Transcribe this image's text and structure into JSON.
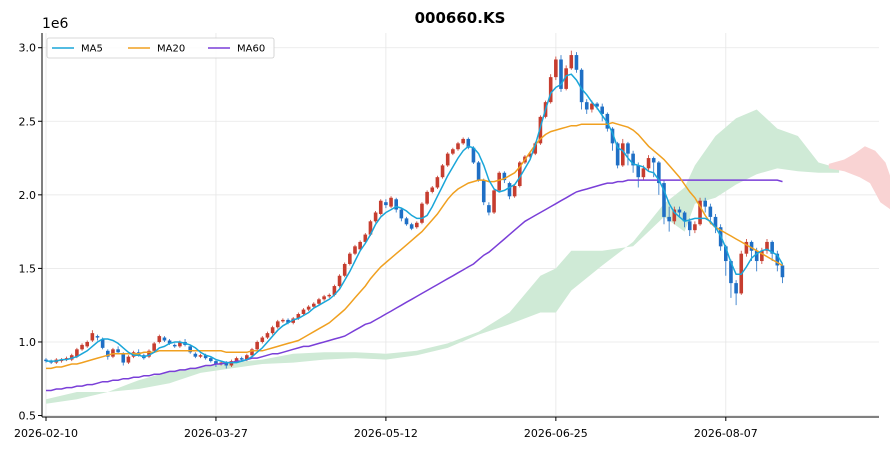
{
  "chart_data": {
    "type": "candlestick",
    "title": "000660.KS",
    "y_scale_label": "1e6",
    "ylim": [
      0.49,
      3.1
    ],
    "y_ticks": [
      0.5,
      1.0,
      1.5,
      2.0,
      2.5,
      3.0
    ],
    "y_tick_labels": [
      "0.5",
      "1.0",
      "1.5",
      "2.0",
      "2.5",
      "3.0"
    ],
    "x_tick_labels": [
      "2026-02-10",
      "2026-03-27",
      "2026-05-12",
      "2026-06-25",
      "2026-08-07"
    ],
    "x_tick_index": [
      0,
      33,
      66,
      99,
      132
    ],
    "total_slots": 162,
    "grid": true,
    "legend_position": "upper-left",
    "colors": {
      "up": "#c63d2f",
      "down": "#1f6fc5",
      "ma5": "#1aa6d9",
      "ma20": "#f0a020",
      "ma60": "#7a3fd8",
      "cloud_bull": "#cfead6",
      "cloud_bear": "#f9d3d3"
    },
    "series": [
      {
        "name": "MA5",
        "color": "#1aa6d9"
      },
      {
        "name": "MA20",
        "color": "#f0a020"
      },
      {
        "name": "MA60",
        "color": "#7a3fd8"
      }
    ],
    "candles": [
      [
        0.88,
        0.87,
        0.89,
        0.86
      ],
      [
        0.87,
        0.86,
        0.88,
        0.85
      ],
      [
        0.86,
        0.88,
        0.89,
        0.85
      ],
      [
        0.87,
        0.88,
        0.89,
        0.86
      ],
      [
        0.88,
        0.89,
        0.9,
        0.87
      ],
      [
        0.88,
        0.91,
        0.92,
        0.87
      ],
      [
        0.9,
        0.95,
        0.96,
        0.89
      ],
      [
        0.95,
        0.98,
        0.99,
        0.94
      ],
      [
        0.97,
        1.0,
        1.01,
        0.96
      ],
      [
        1.01,
        1.06,
        1.08,
        1.0
      ],
      [
        1.04,
        1.03,
        1.05,
        1.01
      ],
      [
        1.02,
        0.96,
        1.03,
        0.95
      ],
      [
        0.94,
        0.9,
        0.95,
        0.88
      ],
      [
        0.9,
        0.95,
        0.96,
        0.89
      ],
      [
        0.95,
        0.93,
        0.97,
        0.92
      ],
      [
        0.92,
        0.86,
        0.93,
        0.84
      ],
      [
        0.86,
        0.9,
        0.91,
        0.85
      ],
      [
        0.9,
        0.93,
        0.94,
        0.89
      ],
      [
        0.93,
        0.91,
        0.95,
        0.9
      ],
      [
        0.91,
        0.89,
        0.92,
        0.88
      ],
      [
        0.9,
        0.94,
        0.95,
        0.89
      ],
      [
        0.94,
        0.99,
        1.0,
        0.93
      ],
      [
        1.0,
        1.04,
        1.05,
        0.99
      ],
      [
        1.03,
        1.01,
        1.04,
        1.0
      ],
      [
        1.01,
        0.99,
        1.02,
        0.98
      ],
      [
        0.98,
        0.97,
        0.99,
        0.96
      ],
      [
        0.97,
        1.0,
        1.01,
        0.96
      ],
      [
        1.0,
        0.98,
        1.02,
        0.97
      ],
      [
        0.97,
        0.93,
        0.98,
        0.92
      ],
      [
        0.92,
        0.9,
        0.93,
        0.89
      ],
      [
        0.9,
        0.91,
        0.92,
        0.89
      ],
      [
        0.91,
        0.89,
        0.92,
        0.88
      ],
      [
        0.89,
        0.87,
        0.9,
        0.86
      ],
      [
        0.87,
        0.85,
        0.88,
        0.83
      ],
      [
        0.85,
        0.86,
        0.87,
        0.84
      ],
      [
        0.86,
        0.84,
        0.87,
        0.82
      ],
      [
        0.84,
        0.87,
        0.88,
        0.83
      ],
      [
        0.87,
        0.89,
        0.9,
        0.86
      ],
      [
        0.89,
        0.88,
        0.9,
        0.87
      ],
      [
        0.88,
        0.91,
        0.92,
        0.87
      ],
      [
        0.91,
        0.95,
        0.96,
        0.9
      ],
      [
        0.95,
        1.0,
        1.01,
        0.94
      ],
      [
        1.0,
        1.03,
        1.04,
        0.99
      ],
      [
        1.03,
        1.06,
        1.07,
        1.02
      ],
      [
        1.06,
        1.1,
        1.11,
        1.05
      ],
      [
        1.1,
        1.14,
        1.15,
        1.09
      ],
      [
        1.14,
        1.15,
        1.16,
        1.13
      ],
      [
        1.15,
        1.13,
        1.16,
        1.12
      ],
      [
        1.13,
        1.16,
        1.17,
        1.12
      ],
      [
        1.16,
        1.19,
        1.2,
        1.15
      ],
      [
        1.19,
        1.22,
        1.23,
        1.18
      ],
      [
        1.22,
        1.24,
        1.25,
        1.21
      ],
      [
        1.24,
        1.26,
        1.27,
        1.23
      ],
      [
        1.26,
        1.29,
        1.3,
        1.25
      ],
      [
        1.29,
        1.31,
        1.32,
        1.28
      ],
      [
        1.31,
        1.32,
        1.33,
        1.3
      ],
      [
        1.32,
        1.38,
        1.39,
        1.31
      ],
      [
        1.38,
        1.45,
        1.46,
        1.37
      ],
      [
        1.45,
        1.53,
        1.54,
        1.44
      ],
      [
        1.53,
        1.6,
        1.61,
        1.52
      ],
      [
        1.6,
        1.65,
        1.66,
        1.59
      ],
      [
        1.63,
        1.68,
        1.69,
        1.62
      ],
      [
        1.68,
        1.73,
        1.74,
        1.67
      ],
      [
        1.73,
        1.82,
        1.83,
        1.72
      ],
      [
        1.82,
        1.88,
        1.89,
        1.81
      ],
      [
        1.87,
        1.96,
        1.97,
        1.86
      ],
      [
        1.95,
        1.93,
        1.97,
        1.91
      ],
      [
        1.92,
        1.98,
        1.99,
        1.91
      ],
      [
        1.97,
        1.9,
        1.98,
        1.88
      ],
      [
        1.9,
        1.84,
        1.91,
        1.82
      ],
      [
        1.84,
        1.8,
        1.85,
        1.79
      ],
      [
        1.8,
        1.77,
        1.81,
        1.76
      ],
      [
        1.78,
        1.81,
        1.82,
        1.77
      ],
      [
        1.81,
        1.94,
        1.95,
        1.8
      ],
      [
        1.94,
        2.02,
        2.03,
        1.93
      ],
      [
        2.02,
        2.05,
        2.06,
        2.01
      ],
      [
        2.05,
        2.12,
        2.13,
        2.04
      ],
      [
        2.12,
        2.2,
        2.21,
        2.11
      ],
      [
        2.2,
        2.28,
        2.29,
        2.19
      ],
      [
        2.28,
        2.31,
        2.32,
        2.27
      ],
      [
        2.31,
        2.35,
        2.36,
        2.3
      ],
      [
        2.35,
        2.38,
        2.39,
        2.34
      ],
      [
        2.38,
        2.32,
        2.39,
        2.31
      ],
      [
        2.32,
        2.22,
        2.33,
        2.21
      ],
      [
        2.22,
        2.1,
        2.23,
        2.09
      ],
      [
        2.1,
        1.95,
        2.11,
        1.93
      ],
      [
        1.93,
        1.88,
        1.95,
        1.86
      ],
      [
        1.88,
        2.03,
        2.04,
        1.87
      ],
      [
        2.03,
        2.15,
        2.16,
        2.02
      ],
      [
        2.15,
        2.1,
        2.16,
        2.08
      ],
      [
        2.08,
        1.99,
        2.09,
        1.97
      ],
      [
        1.99,
        2.06,
        2.07,
        1.98
      ],
      [
        2.06,
        2.22,
        2.23,
        2.05
      ],
      [
        2.22,
        2.26,
        2.27,
        2.21
      ],
      [
        2.26,
        2.28,
        2.29,
        2.25
      ],
      [
        2.28,
        2.35,
        2.36,
        2.27
      ],
      [
        2.35,
        2.53,
        2.54,
        2.34
      ],
      [
        2.53,
        2.63,
        2.64,
        2.52
      ],
      [
        2.63,
        2.8,
        2.82,
        2.62
      ],
      [
        2.8,
        2.92,
        2.94,
        2.78
      ],
      [
        2.92,
        2.72,
        2.95,
        2.7
      ],
      [
        2.72,
        2.86,
        2.88,
        2.71
      ],
      [
        2.86,
        2.95,
        2.98,
        2.85
      ],
      [
        2.95,
        2.85,
        2.97,
        2.83
      ],
      [
        2.85,
        2.63,
        2.86,
        2.58
      ],
      [
        2.63,
        2.58,
        2.65,
        2.55
      ],
      [
        2.58,
        2.62,
        2.64,
        2.56
      ],
      [
        2.62,
        2.6,
        2.63,
        2.58
      ],
      [
        2.6,
        2.55,
        2.62,
        2.5
      ],
      [
        2.55,
        2.45,
        2.56,
        2.43
      ],
      [
        2.45,
        2.35,
        2.46,
        2.3
      ],
      [
        2.35,
        2.2,
        2.36,
        2.18
      ],
      [
        2.2,
        2.35,
        2.38,
        2.19
      ],
      [
        2.35,
        2.28,
        2.36,
        2.2
      ],
      [
        2.28,
        2.2,
        2.3,
        2.15
      ],
      [
        2.2,
        2.12,
        2.22,
        2.05
      ],
      [
        2.12,
        2.18,
        2.2,
        2.1
      ],
      [
        2.18,
        2.25,
        2.27,
        2.16
      ],
      [
        2.25,
        2.22,
        2.26,
        2.12
      ],
      [
        2.22,
        2.08,
        2.23,
        2.0
      ],
      [
        2.08,
        1.85,
        2.1,
        1.8
      ],
      [
        1.85,
        1.82,
        1.92,
        1.75
      ],
      [
        1.82,
        1.9,
        1.92,
        1.8
      ],
      [
        1.9,
        1.88,
        1.92,
        1.85
      ],
      [
        1.88,
        1.82,
        1.89,
        1.78
      ],
      [
        1.82,
        1.76,
        1.84,
        1.72
      ],
      [
        1.76,
        1.8,
        1.82,
        1.74
      ],
      [
        1.8,
        1.96,
        1.98,
        1.79
      ],
      [
        1.96,
        1.92,
        1.98,
        1.88
      ],
      [
        1.92,
        1.85,
        1.94,
        1.8
      ],
      [
        1.85,
        1.78,
        1.87,
        1.74
      ],
      [
        1.78,
        1.65,
        1.8,
        1.62
      ],
      [
        1.65,
        1.55,
        1.66,
        1.45
      ],
      [
        1.55,
        1.4,
        1.56,
        1.3
      ],
      [
        1.4,
        1.33,
        1.42,
        1.25
      ],
      [
        1.33,
        1.6,
        1.62,
        1.32
      ],
      [
        1.6,
        1.68,
        1.7,
        1.58
      ],
      [
        1.68,
        1.62,
        1.69,
        1.55
      ],
      [
        1.62,
        1.55,
        1.64,
        1.48
      ],
      [
        1.55,
        1.62,
        1.64,
        1.53
      ],
      [
        1.62,
        1.68,
        1.7,
        1.6
      ],
      [
        1.68,
        1.6,
        1.69,
        1.55
      ],
      [
        1.6,
        1.52,
        1.62,
        1.48
      ],
      [
        1.52,
        1.44,
        1.53,
        1.4
      ]
    ],
    "ma5": [
      0.87,
      0.87,
      0.87,
      0.88,
      0.88,
      0.89,
      0.9,
      0.92,
      0.94,
      0.97,
      1.0,
      1.02,
      1.02,
      1.01,
      0.99,
      0.96,
      0.93,
      0.91,
      0.91,
      0.9,
      0.91,
      0.93,
      0.96,
      0.97,
      0.99,
      1.0,
      1.0,
      0.99,
      0.98,
      0.96,
      0.93,
      0.91,
      0.9,
      0.88,
      0.87,
      0.86,
      0.86,
      0.86,
      0.87,
      0.88,
      0.9,
      0.93,
      0.96,
      1.0,
      1.04,
      1.08,
      1.11,
      1.13,
      1.15,
      1.16,
      1.18,
      1.2,
      1.23,
      1.25,
      1.27,
      1.29,
      1.32,
      1.36,
      1.42,
      1.48,
      1.55,
      1.62,
      1.67,
      1.73,
      1.8,
      1.85,
      1.88,
      1.9,
      1.92,
      1.91,
      1.89,
      1.86,
      1.84,
      1.84,
      1.86,
      1.92,
      1.99,
      2.06,
      2.13,
      2.19,
      2.25,
      2.3,
      2.33,
      2.32,
      2.28,
      2.2,
      2.1,
      2.04,
      2.02,
      2.03,
      2.05,
      2.07,
      2.12,
      2.18,
      2.24,
      2.34,
      2.46,
      2.58,
      2.69,
      2.73,
      2.75,
      2.81,
      2.82,
      2.78,
      2.72,
      2.68,
      2.63,
      2.59,
      2.54,
      2.49,
      2.42,
      2.32,
      2.3,
      2.25,
      2.21,
      2.2,
      2.19,
      2.16,
      2.15,
      2.1,
      2.03,
      1.94,
      1.88,
      1.85,
      1.82,
      1.83,
      1.84,
      1.84,
      1.84,
      1.82,
      1.78,
      1.72,
      1.64,
      1.54,
      1.46,
      1.46,
      1.51,
      1.57,
      1.6,
      1.62,
      1.63,
      1.61,
      1.59,
      1.53
    ],
    "ma20": [
      0.82,
      0.82,
      0.83,
      0.83,
      0.84,
      0.85,
      0.85,
      0.86,
      0.87,
      0.88,
      0.89,
      0.9,
      0.91,
      0.92,
      0.92,
      0.92,
      0.92,
      0.92,
      0.92,
      0.93,
      0.93,
      0.93,
      0.94,
      0.94,
      0.94,
      0.94,
      0.94,
      0.94,
      0.94,
      0.94,
      0.94,
      0.94,
      0.94,
      0.94,
      0.94,
      0.93,
      0.93,
      0.93,
      0.93,
      0.93,
      0.94,
      0.94,
      0.94,
      0.95,
      0.96,
      0.97,
      0.98,
      0.99,
      1.0,
      1.01,
      1.03,
      1.05,
      1.07,
      1.09,
      1.11,
      1.13,
      1.16,
      1.19,
      1.22,
      1.26,
      1.3,
      1.34,
      1.38,
      1.43,
      1.47,
      1.51,
      1.54,
      1.57,
      1.6,
      1.63,
      1.66,
      1.69,
      1.72,
      1.75,
      1.79,
      1.83,
      1.87,
      1.92,
      1.97,
      2.01,
      2.04,
      2.06,
      2.08,
      2.09,
      2.1,
      2.1,
      2.09,
      2.09,
      2.1,
      2.11,
      2.13,
      2.15,
      2.19,
      2.24,
      2.29,
      2.34,
      2.38,
      2.41,
      2.43,
      2.44,
      2.45,
      2.46,
      2.47,
      2.47,
      2.48,
      2.48,
      2.48,
      2.48,
      2.48,
      2.48,
      2.49,
      2.48,
      2.47,
      2.46,
      2.44,
      2.41,
      2.37,
      2.33,
      2.3,
      2.27,
      2.24,
      2.2,
      2.16,
      2.12,
      2.07,
      2.02,
      1.98,
      1.92,
      1.86,
      1.81,
      1.78,
      1.76,
      1.74,
      1.72,
      1.7,
      1.68,
      1.66,
      1.64,
      1.62,
      1.6,
      1.58,
      1.56,
      1.54,
      1.52
    ],
    "ma60": [
      0.67,
      0.67,
      0.68,
      0.68,
      0.69,
      0.69,
      0.7,
      0.7,
      0.71,
      0.71,
      0.72,
      0.73,
      0.73,
      0.74,
      0.74,
      0.75,
      0.75,
      0.76,
      0.76,
      0.77,
      0.77,
      0.78,
      0.78,
      0.79,
      0.8,
      0.8,
      0.81,
      0.81,
      0.82,
      0.82,
      0.83,
      0.84,
      0.84,
      0.85,
      0.85,
      0.86,
      0.86,
      0.87,
      0.87,
      0.88,
      0.89,
      0.89,
      0.9,
      0.91,
      0.92,
      0.92,
      0.93,
      0.94,
      0.95,
      0.96,
      0.97,
      0.97,
      0.98,
      0.99,
      1.0,
      1.01,
      1.02,
      1.03,
      1.04,
      1.06,
      1.08,
      1.1,
      1.12,
      1.13,
      1.15,
      1.17,
      1.19,
      1.21,
      1.23,
      1.25,
      1.27,
      1.29,
      1.31,
      1.33,
      1.35,
      1.37,
      1.39,
      1.41,
      1.43,
      1.45,
      1.47,
      1.49,
      1.51,
      1.53,
      1.56,
      1.59,
      1.61,
      1.64,
      1.67,
      1.7,
      1.73,
      1.76,
      1.79,
      1.82,
      1.84,
      1.86,
      1.88,
      1.9,
      1.92,
      1.94,
      1.96,
      1.98,
      2.0,
      2.02,
      2.03,
      2.04,
      2.05,
      2.06,
      2.07,
      2.08,
      2.08,
      2.09,
      2.09,
      2.1,
      2.1,
      2.1,
      2.1,
      2.1,
      2.1,
      2.1,
      2.1,
      2.1,
      2.1,
      2.1,
      2.1,
      2.1,
      2.1,
      2.1,
      2.1,
      2.1,
      2.1,
      2.1,
      2.1,
      2.1,
      2.1,
      2.1,
      2.1,
      2.1,
      2.1,
      2.1,
      2.1,
      2.1,
      2.1,
      2.09
    ],
    "cloud_upper": [
      [
        0,
        0.61
      ],
      [
        6,
        0.66
      ],
      [
        12,
        0.66
      ],
      [
        18,
        0.68
      ],
      [
        24,
        0.72
      ],
      [
        30,
        0.79
      ],
      [
        36,
        0.82
      ],
      [
        42,
        0.85
      ],
      [
        48,
        0.86
      ],
      [
        54,
        0.88
      ],
      [
        60,
        0.89
      ],
      [
        66,
        0.88
      ],
      [
        72,
        0.91
      ],
      [
        78,
        0.96
      ],
      [
        84,
        1.05
      ],
      [
        90,
        1.12
      ],
      [
        96,
        1.2
      ],
      [
        99,
        1.2
      ],
      [
        102,
        1.35
      ],
      [
        108,
        1.52
      ],
      [
        114,
        1.68
      ],
      [
        120,
        1.94
      ],
      [
        124,
        2.05
      ],
      [
        126,
        2.2
      ],
      [
        130,
        2.4
      ],
      [
        134,
        2.52
      ],
      [
        138,
        2.58
      ],
      [
        142,
        2.45
      ],
      [
        146,
        2.4
      ],
      [
        150,
        2.22
      ],
      [
        154,
        2.18
      ]
    ],
    "cloud_lower": [
      [
        154,
        2.15
      ],
      [
        150,
        2.15
      ],
      [
        146,
        2.16
      ],
      [
        142,
        2.18
      ],
      [
        138,
        2.14
      ],
      [
        134,
        2.07
      ],
      [
        130,
        1.98
      ],
      [
        126,
        1.94
      ],
      [
        124,
        1.75
      ],
      [
        120,
        1.85
      ],
      [
        114,
        1.65
      ],
      [
        108,
        1.62
      ],
      [
        102,
        1.62
      ],
      [
        99,
        1.5
      ],
      [
        96,
        1.45
      ],
      [
        90,
        1.2
      ],
      [
        84,
        1.07
      ],
      [
        78,
        0.99
      ],
      [
        72,
        0.94
      ],
      [
        66,
        0.92
      ],
      [
        60,
        0.93
      ],
      [
        54,
        0.93
      ],
      [
        48,
        0.92
      ],
      [
        42,
        0.88
      ],
      [
        36,
        0.86
      ],
      [
        30,
        0.83
      ],
      [
        24,
        0.8
      ],
      [
        18,
        0.74
      ],
      [
        12,
        0.66
      ],
      [
        6,
        0.61
      ],
      [
        0,
        0.58
      ]
    ],
    "cloud_bear": [
      [
        152,
        2.21
      ],
      [
        155,
        2.24
      ],
      [
        157,
        2.28
      ],
      [
        159,
        2.33
      ],
      [
        161,
        2.3
      ],
      [
        163,
        2.22
      ],
      [
        164,
        2.12
      ],
      [
        170,
        2.12
      ],
      [
        170,
        1.7
      ],
      [
        168,
        1.78
      ],
      [
        166,
        1.85
      ],
      [
        164,
        1.9
      ],
      [
        162,
        1.95
      ],
      [
        160,
        2.08
      ],
      [
        158,
        2.12
      ],
      [
        155,
        2.16
      ],
      [
        152,
        2.18
      ]
    ]
  }
}
